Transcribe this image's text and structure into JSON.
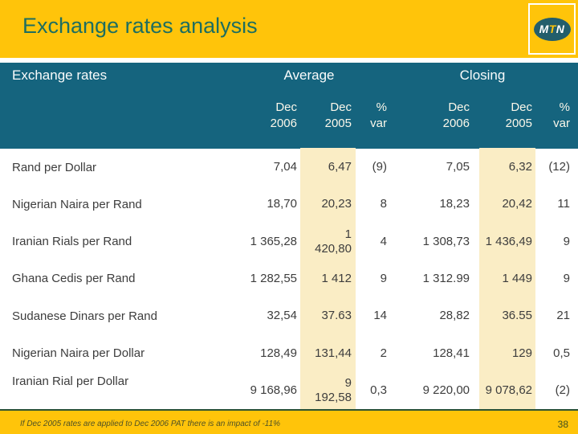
{
  "colors": {
    "brand_yellow": "#FFC40A",
    "band_teal": "#15647E",
    "highlight_cream": "#FAEDC5",
    "title_green": "#1E6E60",
    "logo_ellipse": "#235E6B"
  },
  "header": {
    "title": "Exchange rates analysis",
    "logo_letters": [
      "M",
      "T",
      "N"
    ]
  },
  "table": {
    "row_header": "Exchange rates",
    "group_average": "Average",
    "group_closing": "Closing",
    "columns": [
      "Dec\n2006",
      "Dec\n2005",
      "%\nvar",
      "Dec\n2006",
      "Dec\n2005",
      "%\nvar"
    ],
    "rows": [
      {
        "label": "Rand per Dollar",
        "values": [
          "7,04",
          "6,47",
          "(9)",
          "7,05",
          "6,32",
          "(12)"
        ]
      },
      {
        "label": "Nigerian Naira per Rand",
        "values": [
          "18,70",
          "20,23",
          "8",
          "18,23",
          "20,42",
          "11"
        ]
      },
      {
        "label": "Iranian Rials per Rand",
        "values": [
          "1 365,28",
          "1\n420,80",
          "4",
          "1 308,73",
          "1 436,49",
          "9"
        ]
      },
      {
        "label": "Ghana Cedis per Rand",
        "values": [
          "1 282,55",
          "1 412",
          "9",
          "1 312.99",
          "1 449",
          "9"
        ]
      },
      {
        "label": "Sudanese Dinars per Rand",
        "values": [
          "32,54",
          "37.63",
          "14",
          "28,82",
          "36.55",
          "21"
        ]
      },
      {
        "label": "Nigerian Naira per Dollar",
        "values": [
          "128,49",
          "131,44",
          "2",
          "128,41",
          "129",
          "0,5"
        ]
      },
      {
        "label": "Iranian Rial per Dollar",
        "values": [
          "9 168,96",
          "9\n192,58",
          "0,3",
          "9 220,00",
          "9 078,62",
          "(2)"
        ]
      }
    ]
  },
  "footer": {
    "footnote": "If Dec 2005 rates are applied to Dec 2006 PAT there is an impact of  -11%",
    "page_number": "38"
  }
}
